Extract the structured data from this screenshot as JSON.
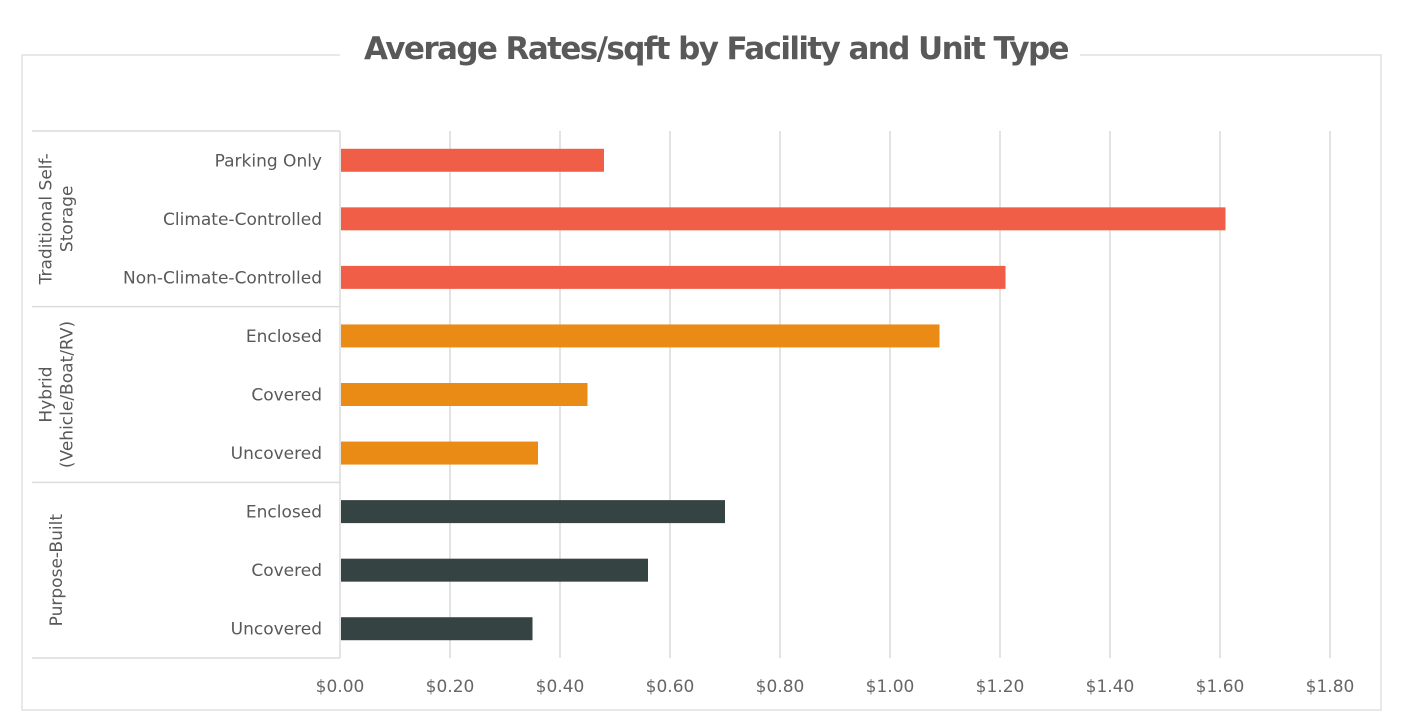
{
  "chart_data": {
    "type": "bar",
    "orientation": "horizontal",
    "title": "Average Rates/sqft by Facility and Unit Type",
    "xlabel": "",
    "ylabel": "",
    "xlim": [
      0,
      1.8
    ],
    "x_tick_step": 0.2,
    "x_ticks": [
      "$0.00",
      "$0.20",
      "$0.40",
      "$0.60",
      "$0.80",
      "$1.00",
      "$1.20",
      "$1.40",
      "$1.60",
      "$1.80"
    ],
    "grid": true,
    "legend": "none",
    "groups": [
      {
        "name": "Traditional Self-Storage",
        "label_lines": [
          "Traditional Self-",
          "Storage"
        ],
        "color": "#F15E48",
        "categories": [
          "Parking Only",
          "Climate-Controlled",
          "Non-Climate-Controlled"
        ],
        "values": [
          0.48,
          1.61,
          1.21
        ]
      },
      {
        "name": "Hybrid (Vehicle/Boat/RV)",
        "label_lines": [
          "Hybrid",
          "(Vehicle/Boat/RV)"
        ],
        "color": "#E98B15",
        "categories": [
          "Enclosed",
          "Covered",
          "Uncovered"
        ],
        "values": [
          1.09,
          0.45,
          0.36
        ]
      },
      {
        "name": "Purpose-Built",
        "label_lines": [
          "Purpose-Built"
        ],
        "color": "#364343",
        "categories": [
          "Enclosed",
          "Covered",
          "Uncovered"
        ],
        "values": [
          0.7,
          0.56,
          0.35
        ]
      }
    ]
  }
}
